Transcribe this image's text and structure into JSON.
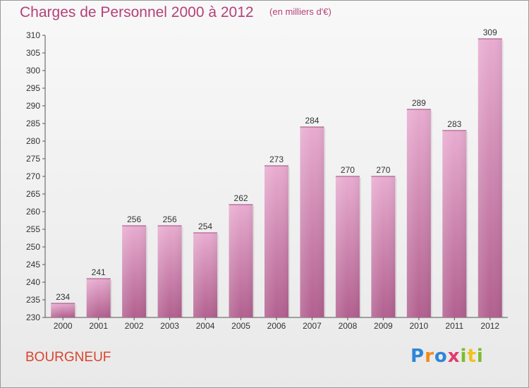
{
  "header": {
    "title": "Charges de Personnel 2000 à 2012",
    "subtitle": "(en milliers d'€)"
  },
  "footer": {
    "place": "BOURGNEUF",
    "logo_text": "Proxiti"
  },
  "colors": {
    "accent": "#b5407a",
    "bar_top": "#e6a6cb",
    "bar_bottom": "#b2608f",
    "place": "#d9442f"
  },
  "chart_data": {
    "type": "bar",
    "categories": [
      "2000",
      "2001",
      "2002",
      "2003",
      "2004",
      "2005",
      "2006",
      "2007",
      "2008",
      "2009",
      "2010",
      "2011",
      "2012"
    ],
    "values": [
      234,
      241,
      256,
      256,
      254,
      262,
      273,
      284,
      270,
      270,
      289,
      283,
      309
    ],
    "ylim": [
      230,
      310
    ],
    "yticks": [
      230,
      235,
      240,
      245,
      250,
      255,
      260,
      265,
      270,
      275,
      280,
      285,
      290,
      295,
      300,
      305,
      310
    ],
    "grid": false,
    "legend": "none"
  }
}
